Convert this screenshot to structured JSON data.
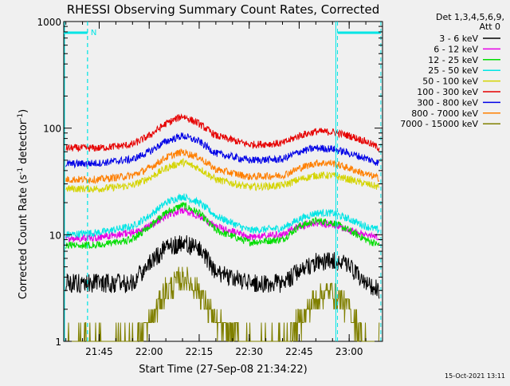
{
  "chart_data": {
    "type": "line",
    "title": "RHESSI Observing Summary Count Rates, Corrected",
    "xlabel": "Start Time (27-Sep-08 21:34:22)",
    "ylabel_main": "Corrected Count Rate (s",
    "ylabel_sup1": "-1",
    "ylabel_mid": " detector",
    "ylabel_sup2": "-1",
    "ylabel_end": ")",
    "y_scale": "log",
    "ylim": [
      1,
      1000
    ],
    "xlim": [
      "21:34:22",
      "23:10:00"
    ],
    "x_ticks": [
      "21:45",
      "22:00",
      "22:15",
      "22:30",
      "22:45",
      "23:00"
    ],
    "y_ticks": [
      "1",
      "10",
      "100",
      "1000"
    ],
    "grid": false,
    "legend_position": "right",
    "legend_header": [
      "Det 1,3,4,5,6,9,",
      "Att 0"
    ],
    "timestamp": "15-Oct-2021 13:11",
    "annotations": [
      {
        "label": "N",
        "color": "#00e5e5",
        "x_start": "21:34:22",
        "x_end": "21:41:30"
      },
      {
        "label": "",
        "color": "#00e5e5",
        "x_start": "22:56:30",
        "x_end": "23:09:30"
      }
    ],
    "markers": {
      "night_boundaries": [
        "21:41:30",
        "22:56:30"
      ],
      "day_boundaries": [
        "21:41:30",
        "23:09:30"
      ]
    },
    "series": [
      {
        "name": "3 - 6 keV",
        "color": "#000000",
        "x": [
          "21:35",
          "21:45",
          "21:55",
          "22:00",
          "22:05",
          "22:10",
          "22:15",
          "22:20",
          "22:30",
          "22:40",
          "22:45",
          "22:50",
          "22:55",
          "23:00",
          "23:05",
          "23:09"
        ],
        "values": [
          3.5,
          3.5,
          3.5,
          5.5,
          7.5,
          8.5,
          7.5,
          4.5,
          3.5,
          3.5,
          4.5,
          5.5,
          5.8,
          5.0,
          3.5,
          3.0
        ]
      },
      {
        "name": "6 - 12 keV",
        "color": "#e600e6",
        "x": [
          "21:35",
          "21:45",
          "21:55",
          "22:00",
          "22:05",
          "22:10",
          "22:15",
          "22:20",
          "22:30",
          "22:40",
          "22:45",
          "22:50",
          "22:55",
          "23:00",
          "23:05",
          "23:09"
        ],
        "values": [
          9,
          9.5,
          10.5,
          12,
          15,
          17,
          15,
          12,
          9.5,
          10,
          12,
          13,
          12.5,
          11,
          10,
          9.5
        ]
      },
      {
        "name": "12 - 25 keV",
        "color": "#00dd00",
        "x": [
          "21:35",
          "21:45",
          "21:55",
          "22:00",
          "22:05",
          "22:10",
          "22:15",
          "22:20",
          "22:30",
          "22:40",
          "22:45",
          "22:50",
          "22:55",
          "23:00",
          "23:05",
          "23:09"
        ],
        "values": [
          8,
          8,
          9,
          12,
          16,
          19,
          16,
          11,
          8.5,
          9,
          12,
          13.5,
          13,
          11,
          9,
          8
        ]
      },
      {
        "name": "25 - 50 keV",
        "color": "#00e5e5",
        "x": [
          "21:35",
          "21:45",
          "21:55",
          "22:00",
          "22:05",
          "22:10",
          "22:15",
          "22:20",
          "22:30",
          "22:40",
          "22:45",
          "22:50",
          "22:55",
          "23:00",
          "23:05",
          "23:09"
        ],
        "values": [
          10,
          10.5,
          12,
          15,
          20,
          23,
          20,
          15,
          11,
          11.5,
          14,
          16,
          16,
          14,
          12,
          11
        ]
      },
      {
        "name": "50 - 100 keV",
        "color": "#d4d400",
        "x": [
          "21:35",
          "21:45",
          "21:55",
          "22:00",
          "22:05",
          "22:10",
          "22:15",
          "22:20",
          "22:30",
          "22:40",
          "22:45",
          "22:50",
          "22:55",
          "23:00",
          "23:05",
          "23:09"
        ],
        "values": [
          27,
          27,
          29,
          34,
          42,
          48,
          42,
          33,
          28,
          29,
          33,
          36,
          36,
          33,
          30,
          28
        ]
      },
      {
        "name": "100 - 300 keV",
        "color": "#e60000",
        "x": [
          "21:35",
          "21:45",
          "21:55",
          "22:00",
          "22:05",
          "22:10",
          "22:15",
          "22:20",
          "22:30",
          "22:40",
          "22:45",
          "22:50",
          "22:55",
          "23:00",
          "23:05",
          "23:09"
        ],
        "values": [
          65,
          65,
          70,
          85,
          110,
          130,
          110,
          85,
          70,
          72,
          85,
          93,
          92,
          85,
          75,
          65
        ]
      },
      {
        "name": "300 - 800 keV",
        "color": "#0000e6",
        "x": [
          "21:35",
          "21:45",
          "21:55",
          "22:00",
          "22:05",
          "22:10",
          "22:15",
          "22:20",
          "22:30",
          "22:40",
          "22:45",
          "22:50",
          "22:55",
          "23:00",
          "23:05",
          "23:09"
        ],
        "values": [
          46,
          47,
          51,
          60,
          75,
          85,
          75,
          58,
          50,
          51,
          60,
          65,
          64,
          58,
          52,
          47
        ]
      },
      {
        "name": "800 - 7000 keV",
        "color": "#ff7f00",
        "x": [
          "21:35",
          "21:45",
          "21:55",
          "22:00",
          "22:05",
          "22:10",
          "22:15",
          "22:20",
          "22:30",
          "22:40",
          "22:45",
          "22:50",
          "22:55",
          "23:00",
          "23:05",
          "23:09"
        ],
        "values": [
          33,
          33,
          36,
          42,
          53,
          60,
          53,
          41,
          35,
          36,
          42,
          47,
          47,
          42,
          37,
          34
        ]
      },
      {
        "name": "7000 - 15000 keV",
        "color": "#808000",
        "x": [
          "21:35",
          "21:45",
          "21:55",
          "22:00",
          "22:05",
          "22:10",
          "22:15",
          "22:20",
          "22:30",
          "22:40",
          "22:45",
          "22:50",
          "22:55",
          "23:00",
          "23:05",
          "23:09"
        ],
        "values": [
          1,
          1,
          1,
          1.5,
          3,
          4,
          3,
          1.5,
          1,
          1,
          1.5,
          2.5,
          3,
          2,
          1,
          1
        ]
      }
    ]
  }
}
